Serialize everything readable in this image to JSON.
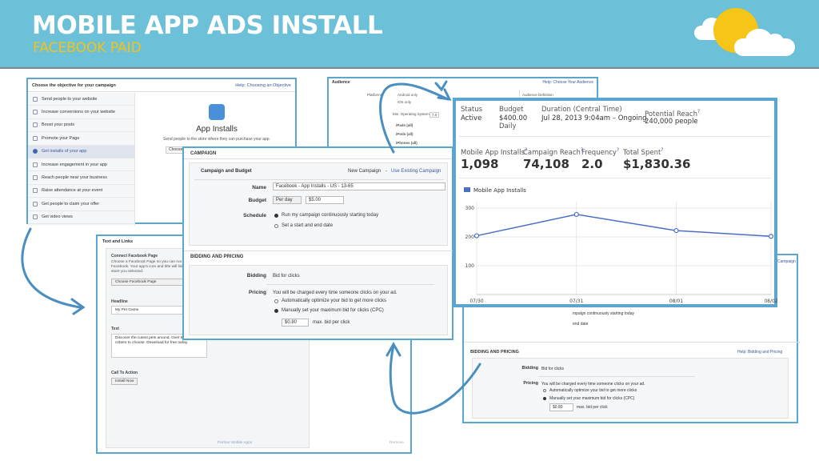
{
  "header": {
    "title": "MOBILE APP ADS INSTALL",
    "subtitle": "FACEBOOK PAID"
  },
  "objectives_panel": {
    "title": "Choose the objective for your campaign",
    "help": "Help: Choosing an Objective",
    "items": [
      "Send people to your website",
      "Increase conversions on your website",
      "Boost your posts",
      "Promote your Page",
      "Get installs of your app",
      "Increase engagement in your app",
      "Reach people near your business",
      "Raise attendance at your event",
      "Get people to claim your offer",
      "Get video views"
    ],
    "selected_index": 4,
    "detail_title": "App Installs",
    "detail_desc": "Send people to the store where they can purchase your app.",
    "detail_select": "Choose"
  },
  "audience_panel": {
    "title": "Audience",
    "help": "Help: Choose Your Audience",
    "platforms_label": "Platforms",
    "option_android": "Android only",
    "option_ios": "iOS only",
    "min_os_label": "Min. Operating System:",
    "min_os_value": "7.0",
    "devices": [
      "iPads (all)",
      "iPods (all)",
      "iPhones (all)"
    ],
    "audience_definition": "Audience Definition"
  },
  "text_links_panel": {
    "title": "Text and Links",
    "connect_label": "Connect Facebook Page",
    "connect_desc_1": "Choose a Facebook Page so you can run c",
    "connect_desc_2": "Facebook. Your app's icon and title will link",
    "connect_desc_3": "store you selected.",
    "choose_page": "Choose Facebook Page",
    "headline_label": "Headline",
    "headline_value": "My Pet Game",
    "text_label": "Text",
    "text_value_1": "Discover the cutest pets around. Over 500 fun",
    "text_value_2": "critters to choose. Download for free today.",
    "cta_label": "Call To Action",
    "cta_value": "Install Now",
    "partner": "Partner Mobile Apps",
    "remove": "Remove"
  },
  "campaign_panel": {
    "section_campaign": "CAMPAIGN",
    "budget_heading": "Campaign and Budget",
    "new_campaign": "New Campaign",
    "use_existing": "Use Existing Campaign",
    "name_label": "Name",
    "name_value": "Facebook - App Installs - US - 13-65",
    "budget_label": "Budget",
    "budget_type": "Per day",
    "budget_value": "$5.00",
    "schedule_label": "Schedule",
    "schedule_opt1": "Run my campaign continuously starting today",
    "schedule_opt2": "Set a start and end date",
    "section_bidding": "BIDDING AND PRICING",
    "bidding_label": "Bidding",
    "bidding_value": "Bid for clicks",
    "pricing_label": "Pricing",
    "pricing_desc": "You will be charged every time someone clicks on your ad.",
    "pricing_opt1": "Automatically optimize your bid to get more clicks",
    "pricing_opt2": "Manually set your maximum bid for clicks (CPC)",
    "bid_value": "$0.80",
    "bid_suffix": "max. bid per click"
  },
  "bidding_panel": {
    "link_top": "Campaign",
    "schedule_frag": "mpaign continuously starting today",
    "date_frag": "end date",
    "title": "BIDDING AND PRICING",
    "help": "Help: Bidding and Pricing",
    "bidding_label": "Bidding",
    "bidding_value": "Bid for clicks",
    "pricing_label": "Pricing",
    "pricing_desc": "You will be charged every time someone clicks on your ad.",
    "pricing_opt1": "Automatically optimize your bid to get more clicks",
    "pricing_opt2": "Manually set your maximum bid for clicks (CPC)",
    "bid_value": "$0.80",
    "bid_suffix": "max. bid per click"
  },
  "stats_panel": {
    "status_label": "Status",
    "status_value": "Active",
    "budget_label": "Budget",
    "budget_value": "$400.00",
    "budget_period": "Daily",
    "duration_label": "Duration (Central Time)",
    "duration_value": "Jul 28, 2013 9:04am – Ongoing",
    "reach_label": "Potential Reach",
    "reach_value": "240,000 people",
    "installs_label": "Mobile App Installs",
    "installs_value": "1,098",
    "campaign_reach_label": "Campaign Reach",
    "campaign_reach_value": "74,108",
    "frequency_label": "Frequency",
    "frequency_value": "2.0",
    "spent_label": "Total Spent",
    "spent_value": "$1,830.36",
    "help_mark": "?"
  },
  "chart_data": {
    "type": "line",
    "series": [
      {
        "name": "Mobile App Installs",
        "values": [
          204,
          278,
          222,
          202
        ]
      }
    ],
    "points_x": [
      0,
      1.0,
      2.0,
      2.95
    ],
    "categories": [
      "07/30",
      "07/31",
      "08/01",
      "08/02"
    ],
    "yticks": [
      100,
      200,
      300
    ],
    "ylim": [
      0,
      300
    ],
    "color": "#4a6fc4"
  },
  "colors": {
    "banner": "#6cc0d8",
    "title": "#ffffff",
    "subtitle": "#f2c318",
    "sun": "#f5c518",
    "panel_border": "#5aa6cf",
    "arrow": "#4a8fc0"
  }
}
